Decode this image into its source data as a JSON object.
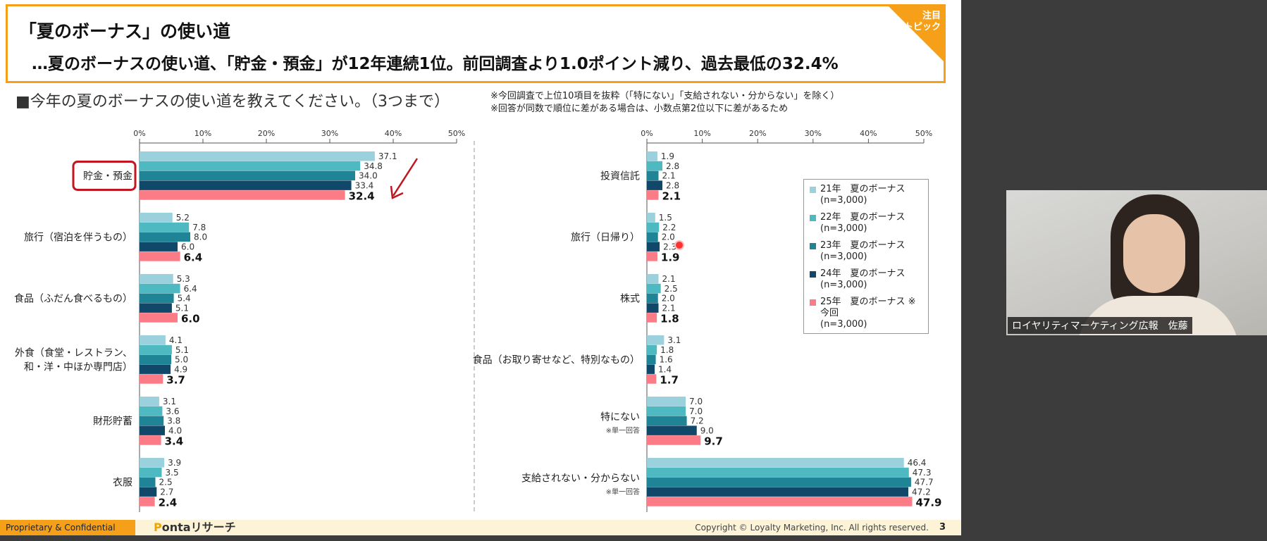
{
  "slide": {
    "title_main": "「夏のボーナス」の使い道",
    "title_sub": "…夏のボーナスの使い道、「貯金・預金」が12年連続1位。前回調査より1.0ポイント減り、過去最低の32.4%",
    "corner_badge": "注目\nトピック",
    "question": "■今年の夏のボーナスの使い道を教えてください。（3つまで）",
    "notes": [
      "※今回調査で上位10項目を抜粋（「特にない」「支給されない・分からない」を除く）",
      "※回答が同数で順位に差がある場合は、小数点第2位以下に差があるため"
    ],
    "footer_left": "Proprietary & Confidential",
    "footer_logo_p": "P",
    "footer_logo_rest": "ontaリサーチ",
    "copyright": "Copyright © Loyalty Marketing, Inc. All rights reserved.",
    "page_number": "3"
  },
  "legend": [
    {
      "label": "21年　夏のボーナス",
      "n": "(n=3,000)",
      "color": "#9ad1dc"
    },
    {
      "label": "22年　夏のボーナス",
      "n": "(n=3,000)",
      "color": "#4fb9c2"
    },
    {
      "label": "23年　夏のボーナス",
      "n": "(n=3,000)",
      "color": "#1f8596"
    },
    {
      "label": "24年　夏のボーナス",
      "n": "(n=3,000)",
      "color": "#0f4869"
    },
    {
      "label": "25年　夏のボーナス ※今回",
      "n": "(n=3,000)",
      "color": "#fb7b86"
    }
  ],
  "chart_data": [
    {
      "type": "bar",
      "orientation": "horizontal",
      "xlim": [
        0,
        50
      ],
      "ticks": [
        "0%",
        "10%",
        "20%",
        "30%",
        "40%",
        "50%"
      ],
      "series": [
        {
          "name": "21年　夏のボーナス",
          "color": "#9ad1dc"
        },
        {
          "name": "22年　夏のボーナス",
          "color": "#4fb9c2"
        },
        {
          "name": "23年　夏のボーナス",
          "color": "#1f8596"
        },
        {
          "name": "24年　夏のボーナス",
          "color": "#0f4869"
        },
        {
          "name": "25年　夏のボーナス ※今回",
          "color": "#fb7b86"
        }
      ],
      "categories": [
        {
          "label": [
            "貯金・預金"
          ],
          "values": [
            37.1,
            34.8,
            34.0,
            33.4,
            32.4
          ],
          "highlight": true
        },
        {
          "label": [
            "旅行（宿泊を伴うもの）"
          ],
          "values": [
            5.2,
            7.8,
            8.0,
            6.0,
            6.4
          ]
        },
        {
          "label": [
            "食品（ふだん食べるもの）"
          ],
          "values": [
            5.3,
            6.4,
            5.4,
            5.1,
            6.0
          ]
        },
        {
          "label": [
            "外食（食堂・レストラン、",
            "和・洋・中ほか専門店）"
          ],
          "values": [
            4.1,
            5.1,
            5.0,
            4.9,
            3.7
          ]
        },
        {
          "label": [
            "財形貯蓄"
          ],
          "values": [
            3.1,
            3.6,
            3.8,
            4.0,
            3.4
          ]
        },
        {
          "label": [
            "衣服"
          ],
          "values": [
            3.9,
            3.5,
            2.5,
            2.7,
            2.4
          ]
        }
      ]
    },
    {
      "type": "bar",
      "orientation": "horizontal",
      "xlim": [
        0,
        50
      ],
      "ticks": [
        "0%",
        "10%",
        "20%",
        "30%",
        "40%",
        "50%"
      ],
      "series": [
        {
          "name": "21年　夏のボーナス",
          "color": "#9ad1dc"
        },
        {
          "name": "22年　夏のボーナス",
          "color": "#4fb9c2"
        },
        {
          "name": "23年　夏のボーナス",
          "color": "#1f8596"
        },
        {
          "name": "24年　夏のボーナス",
          "color": "#0f4869"
        },
        {
          "name": "25年　夏のボーナス ※今回",
          "color": "#fb7b86"
        }
      ],
      "categories": [
        {
          "label": [
            "投資信託"
          ],
          "values": [
            1.9,
            2.8,
            2.1,
            2.8,
            2.1
          ]
        },
        {
          "label": [
            "旅行（日帰り）"
          ],
          "values": [
            1.5,
            2.2,
            2.0,
            2.3,
            1.9
          ]
        },
        {
          "label": [
            "株式"
          ],
          "values": [
            2.1,
            2.5,
            2.0,
            2.1,
            1.8
          ]
        },
        {
          "label": [
            "食品（お取り寄せなど、特別なもの）"
          ],
          "values": [
            3.1,
            1.8,
            1.6,
            1.4,
            1.7
          ]
        },
        {
          "label": [
            "特にない"
          ],
          "note": "※単一回答",
          "values": [
            7.0,
            7.0,
            7.2,
            9.0,
            9.7
          ]
        },
        {
          "label": [
            "支給されない・分からない"
          ],
          "note": "※単一回答",
          "values": [
            46.4,
            47.3,
            47.7,
            47.2,
            47.9
          ]
        }
      ]
    }
  ],
  "video": {
    "name": "ロイヤリティマーケティング広報　佐藤"
  }
}
